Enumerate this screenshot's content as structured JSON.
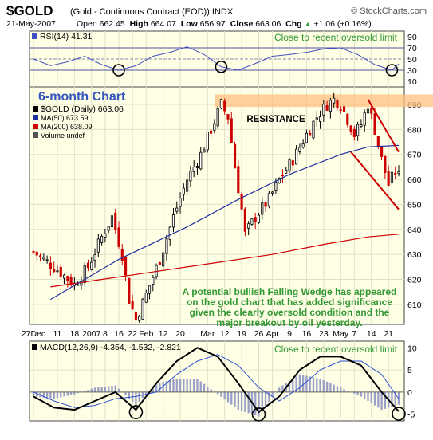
{
  "header": {
    "symbol": "$GOLD",
    "contract": "(Gold - Continuous Contract (EOD))  INDX",
    "credit": "© StockCharts.com",
    "date": "21-May-2007",
    "open_label": "Open",
    "open": "662.45",
    "high_label": "High",
    "high": "664.07",
    "low_label": "Low",
    "low": "656.97",
    "close_label": "Close",
    "close": "663.06",
    "chg_label": "Chg",
    "chg": "+1.06 (+0.16%)",
    "chg_arrow": "▲"
  },
  "colors": {
    "panel_bg": "#ffffe6",
    "up_candle": "#000000",
    "down_candle": "#cc0000",
    "ma50": "#1f2f9f",
    "ma200": "#cc0000",
    "rsi_line": "#4050c0",
    "macd_line": "#000000",
    "signal_line": "#3050d0",
    "histogram": "#9aa0c8",
    "annotation_text": "#339933",
    "resistance_band": "#ffc080",
    "wedge": "#cc0000",
    "circle": "#000000"
  },
  "rsi_panel": {
    "label": "RSI(14) 41.31",
    "note": "Close to recent oversold limit",
    "ticks": [
      "90",
      "70",
      "50",
      "30",
      "10"
    ]
  },
  "price_panel": {
    "chart_label": "6-month Chart",
    "legend": [
      {
        "text": "$GOLD (Daily) 663.06",
        "color": "#000000"
      },
      {
        "text": "MA(50) 673.59",
        "color": "#1f2f9f"
      },
      {
        "text": "MA(200) 638.09",
        "color": "#cc0000"
      },
      {
        "text": "Volume undef",
        "color": "#555555"
      }
    ],
    "resistance_label": "RESISTANCE",
    "annotation": [
      "A potential bullish Falling Wedge has appeared",
      "on the gold chart that has added significance",
      "given the clearly oversold condition and the",
      "major breakout by oil yesterday."
    ],
    "ticks": [
      "690",
      "680",
      "670",
      "660",
      "650",
      "640",
      "630",
      "620",
      "610"
    ]
  },
  "macd_panel": {
    "label": "MACD(12,26,9) -4.354, -1.532, -2.821",
    "note": "Close to recent oversold limit",
    "ticks": [
      "10",
      "5",
      "0",
      "-5"
    ]
  },
  "x_axis": {
    "labels": [
      "27Dec",
      "11",
      "18",
      "2007",
      "8",
      "16",
      "22",
      "Feb",
      "12",
      "20",
      "Mar",
      "12",
      "19",
      "26",
      "Apr",
      "9",
      "16",
      "23",
      "May",
      "7",
      "14",
      "21"
    ]
  },
  "chart_data": [
    {
      "type": "line",
      "name": "RSI(14)",
      "ylim": [
        0,
        100
      ],
      "last": 41.31,
      "guides": [
        70,
        50,
        30
      ],
      "x": [
        0,
        5,
        10,
        15,
        20,
        25,
        30,
        35,
        40,
        45,
        50,
        55,
        60,
        65,
        70,
        75,
        80,
        85,
        90,
        95,
        100,
        105,
        107
      ],
      "values": [
        50,
        38,
        45,
        55,
        40,
        30,
        38,
        55,
        62,
        72,
        58,
        36,
        30,
        42,
        55,
        58,
        62,
        68,
        70,
        58,
        40,
        30,
        41.31
      ],
      "oversold_marks": [
        25,
        55,
        105
      ]
    },
    {
      "type": "candlestick",
      "name": "$GOLD (Daily)",
      "ylim": [
        602,
        697
      ],
      "x_count": 108,
      "close_trend": [
        [
          0,
          631
        ],
        [
          6,
          625
        ],
        [
          12,
          618
        ],
        [
          16,
          625
        ],
        [
          20,
          637
        ],
        [
          23,
          645
        ],
        [
          26,
          630
        ],
        [
          28,
          612
        ],
        [
          30,
          604
        ],
        [
          33,
          614
        ],
        [
          37,
          628
        ],
        [
          41,
          645
        ],
        [
          45,
          660
        ],
        [
          49,
          670
        ],
        [
          52,
          680
        ],
        [
          55,
          690
        ],
        [
          57,
          685
        ],
        [
          59,
          665
        ],
        [
          61,
          648
        ],
        [
          62,
          638
        ],
        [
          65,
          645
        ],
        [
          69,
          652
        ],
        [
          72,
          660
        ],
        [
          76,
          668
        ],
        [
          80,
          678
        ],
        [
          83,
          685
        ],
        [
          86,
          690
        ],
        [
          88,
          692
        ],
        [
          90,
          690
        ],
        [
          92,
          684
        ],
        [
          94,
          678
        ],
        [
          96,
          682
        ],
        [
          98,
          690
        ],
        [
          100,
          680
        ],
        [
          102,
          668
        ],
        [
          104,
          658
        ],
        [
          106,
          663
        ],
        [
          107,
          663
        ]
      ],
      "ma50": {
        "name": "MA(50)",
        "last": 673.59,
        "points": [
          [
            5,
            612
          ],
          [
            25,
            628
          ],
          [
            45,
            641
          ],
          [
            60,
            652
          ],
          [
            75,
            662
          ],
          [
            90,
            670
          ],
          [
            98,
            673
          ],
          [
            107,
            673.59
          ]
        ]
      },
      "ma200": {
        "name": "MA(200)",
        "last": 638.09,
        "points": [
          [
            5,
            617
          ],
          [
            30,
            622
          ],
          [
            55,
            627
          ],
          [
            70,
            630
          ],
          [
            85,
            634
          ],
          [
            98,
            637
          ],
          [
            107,
            638.09
          ]
        ]
      },
      "resistance_zone": [
        689,
        694
      ],
      "falling_wedge": {
        "upper": [
          [
            98,
            692
          ],
          [
            107,
            671
          ]
        ],
        "lower": [
          [
            93,
            671
          ],
          [
            107,
            648
          ]
        ]
      }
    },
    {
      "type": "line",
      "name": "MACD(12,26,9)",
      "ylim": [
        -6.5,
        11.5
      ],
      "last": {
        "macd": -4.354,
        "signal": -1.532,
        "histogram": -2.821
      },
      "x": [
        0,
        6,
        12,
        18,
        24,
        30,
        36,
        42,
        48,
        54,
        60,
        66,
        72,
        78,
        84,
        90,
        96,
        102,
        107
      ],
      "macd": [
        -1,
        -3.5,
        -4,
        -2,
        0,
        -4,
        2,
        7,
        10,
        8,
        2,
        -4.5,
        -1,
        5,
        8,
        8,
        6,
        0,
        -4.354
      ],
      "signal": [
        0,
        -2,
        -3.5,
        -3,
        -1.5,
        -1,
        0,
        4,
        7,
        8.5,
        6,
        1,
        -2,
        1,
        5,
        7,
        7,
        4,
        -1.532
      ],
      "oversold_marks": [
        30,
        66,
        107
      ]
    }
  ]
}
